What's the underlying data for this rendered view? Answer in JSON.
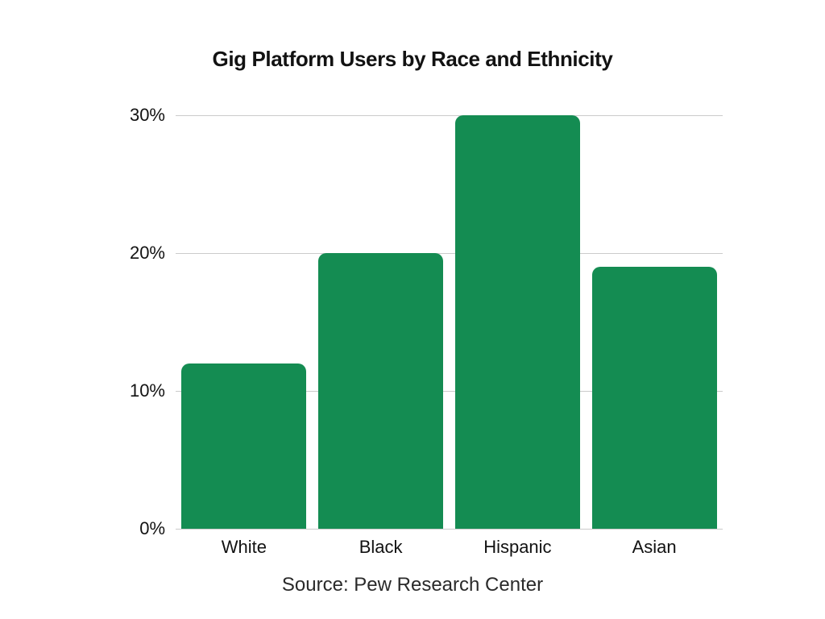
{
  "chart_data": {
    "type": "bar",
    "title": "Gig Platform Users by Race and Ethnicity",
    "categories": [
      "White",
      "Black",
      "Hispanic",
      "Asian"
    ],
    "values": [
      12,
      20,
      30,
      19
    ],
    "value_unit": "%",
    "y_ticks": [
      0,
      10,
      20,
      30
    ],
    "y_tick_labels": [
      "0%",
      "10%",
      "20%",
      "30%"
    ],
    "ylim": [
      0,
      30
    ],
    "grid": "horizontal",
    "legend": "none",
    "source": "Source: Pew Research Center",
    "colors": {
      "bar": "#148C52",
      "gridline": "#cbcbcb",
      "text": "#121212",
      "background": "#ffffff"
    }
  }
}
